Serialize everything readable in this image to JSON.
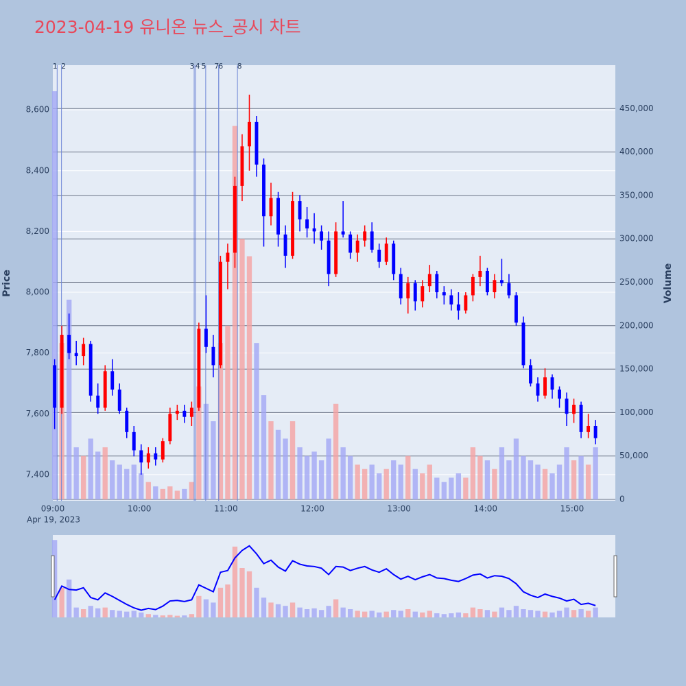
{
  "chart_data": {
    "type": "candlestick",
    "title": "2023-04-19 유니온 뉴스_공시 차트",
    "title_color": "#e8485a",
    "y_label": "Price",
    "y2_label": "Volume",
    "date_label": "Apr 19, 2023",
    "up_color": "#ff0000",
    "down_color": "#0000ff",
    "volume_up_color": "#f5a3a3",
    "volume_down_color": "#a3a8f5",
    "news_color": "#6f86d6",
    "xlim": [
      "09:00",
      "15:30"
    ],
    "xticks": [
      "09:00",
      "10:00",
      "11:00",
      "12:00",
      "13:00",
      "14:00",
      "15:00"
    ],
    "ylim": [
      7314,
      8747
    ],
    "yticks": [
      {
        "value": 7400,
        "label": "7,400"
      },
      {
        "value": 7600,
        "label": "7,600"
      },
      {
        "value": 7800,
        "label": "7,800"
      },
      {
        "value": 8000,
        "label": "8,000"
      },
      {
        "value": 8200,
        "label": "8,200"
      },
      {
        "value": 8400,
        "label": "8,400"
      },
      {
        "value": 8600,
        "label": "8,600"
      }
    ],
    "y2lim": [
      0,
      500000
    ],
    "y2ticks": [
      0,
      {
        "value": 50000,
        "label": "50,000"
      },
      {
        "value": 100000,
        "label": "100,000"
      },
      {
        "value": 150000,
        "label": "150,000"
      },
      {
        "value": 200000,
        "label": "200,000"
      },
      {
        "value": 250000,
        "label": "250,000"
      },
      {
        "value": 300000,
        "label": "300,000"
      },
      {
        "value": 350000,
        "label": "350,000"
      },
      {
        "value": 400000,
        "label": "400,000"
      },
      {
        "value": 450000,
        "label": "450,000"
      }
    ],
    "news": [
      {
        "label": "1",
        "x": "09:03"
      },
      {
        "label": "2",
        "x": "09:06"
      },
      {
        "label": "3",
        "x": "10:38"
      },
      {
        "label": "4",
        "x": "10:39"
      },
      {
        "label": "5",
        "x": "10:46"
      },
      {
        "label": "6",
        "x": "10:55"
      },
      {
        "label": "7",
        "x": "10:55"
      },
      {
        "label": "8",
        "x": "11:08"
      }
    ],
    "x": [
      "09:00",
      "09:05",
      "09:10",
      "09:15",
      "09:20",
      "09:25",
      "09:30",
      "09:35",
      "09:40",
      "09:45",
      "09:50",
      "09:55",
      "10:00",
      "10:05",
      "10:10",
      "10:15",
      "10:20",
      "10:25",
      "10:30",
      "10:35",
      "10:40",
      "10:45",
      "10:50",
      "10:55",
      "11:00",
      "11:05",
      "11:10",
      "11:15",
      "11:20",
      "11:25",
      "11:30",
      "11:35",
      "11:40",
      "11:45",
      "11:50",
      "11:55",
      "12:00",
      "12:05",
      "12:10",
      "12:15",
      "12:20",
      "12:25",
      "12:30",
      "12:35",
      "12:40",
      "12:45",
      "12:50",
      "12:55",
      "13:00",
      "13:05",
      "13:10",
      "13:15",
      "13:20",
      "13:25",
      "13:30",
      "13:35",
      "13:40",
      "13:45",
      "13:50",
      "13:55",
      "14:00",
      "14:05",
      "14:10",
      "14:15",
      "14:20",
      "14:25",
      "14:30",
      "14:35",
      "14:40",
      "14:45",
      "14:50",
      "14:55",
      "15:00",
      "15:05",
      "15:10",
      "15:15"
    ],
    "open": [
      7760,
      7620,
      7860,
      7800,
      7790,
      7830,
      7660,
      7620,
      7740,
      7680,
      7610,
      7540,
      7480,
      7440,
      7470,
      7450,
      7510,
      7600,
      7610,
      7590,
      7620,
      7880,
      7820,
      7760,
      8100,
      8130,
      8350,
      8480,
      8560,
      8420,
      8250,
      8310,
      8190,
      8120,
      8300,
      8240,
      8210,
      8200,
      8170,
      8060,
      8200,
      8190,
      8130,
      8170,
      8200,
      8140,
      8100,
      8160,
      8060,
      7980,
      8030,
      7970,
      8020,
      8060,
      8000,
      7990,
      7960,
      7940,
      7990,
      8050,
      8070,
      8000,
      8040,
      8030,
      7990,
      7900,
      7760,
      7700,
      7660,
      7720,
      7680,
      7650,
      7600,
      7630,
      7540,
      7560
    ],
    "high": [
      7780,
      7890,
      7930,
      7840,
      7850,
      7840,
      7700,
      7760,
      7780,
      7700,
      7620,
      7560,
      7500,
      7490,
      7490,
      7520,
      7620,
      7630,
      7630,
      7640,
      7900,
      7990,
      7860,
      8120,
      8160,
      8380,
      8520,
      8650,
      8580,
      8440,
      8360,
      8330,
      8220,
      8330,
      8320,
      8280,
      8260,
      8220,
      8200,
      8230,
      8300,
      8200,
      8190,
      8220,
      8230,
      8160,
      8180,
      8170,
      8080,
      8050,
      8040,
      8040,
      8090,
      8070,
      8020,
      8010,
      8000,
      8000,
      8060,
      8120,
      8080,
      8060,
      8110,
      8060,
      8000,
      7920,
      7780,
      7720,
      7750,
      7730,
      7690,
      7670,
      7650,
      7640,
      7600,
      7580
    ],
    "low": [
      7550,
      7600,
      7780,
      7760,
      7760,
      7640,
      7600,
      7610,
      7660,
      7600,
      7520,
      7460,
      7400,
      7420,
      7430,
      7440,
      7500,
      7580,
      7570,
      7560,
      7610,
      7800,
      7720,
      7750,
      8010,
      8080,
      8300,
      8400,
      8380,
      8150,
      8220,
      8150,
      8080,
      8110,
      8200,
      8180,
      8160,
      8140,
      8020,
      8050,
      8180,
      8110,
      8100,
      8150,
      8130,
      8080,
      8090,
      8040,
      7960,
      7930,
      7940,
      7950,
      8000,
      7980,
      7960,
      7940,
      7910,
      7930,
      7970,
      8020,
      7990,
      7980,
      8020,
      7980,
      7890,
      7750,
      7690,
      7640,
      7650,
      7650,
      7620,
      7560,
      7570,
      7520,
      7520,
      7500
    ],
    "close": [
      7620,
      7860,
      7800,
      7790,
      7830,
      7660,
      7620,
      7740,
      7680,
      7610,
      7540,
      7480,
      7440,
      7470,
      7450,
      7510,
      7600,
      7610,
      7590,
      7620,
      7880,
      7820,
      7760,
      8100,
      8130,
      8350,
      8480,
      8560,
      8420,
      8250,
      8310,
      8190,
      8120,
      8300,
      8240,
      8210,
      8200,
      8170,
      8060,
      8200,
      8190,
      8130,
      8170,
      8200,
      8140,
      8100,
      8160,
      8060,
      7980,
      8030,
      7970,
      8020,
      8060,
      8000,
      7990,
      7960,
      7940,
      7990,
      8050,
      8070,
      8000,
      8040,
      8030,
      7990,
      7900,
      7760,
      7700,
      7660,
      7720,
      7680,
      7650,
      7600,
      7630,
      7540,
      7560,
      7520
    ],
    "volume": [
      470000,
      180000,
      230000,
      60000,
      50000,
      70000,
      55000,
      60000,
      45000,
      40000,
      35000,
      40000,
      30000,
      20000,
      15000,
      12000,
      15000,
      10000,
      12000,
      20000,
      130000,
      110000,
      90000,
      180000,
      200000,
      430000,
      300000,
      280000,
      180000,
      120000,
      90000,
      80000,
      70000,
      90000,
      60000,
      50000,
      55000,
      45000,
      70000,
      110000,
      60000,
      50000,
      40000,
      35000,
      40000,
      30000,
      35000,
      45000,
      40000,
      50000,
      35000,
      30000,
      40000,
      25000,
      20000,
      25000,
      30000,
      25000,
      60000,
      50000,
      45000,
      35000,
      60000,
      45000,
      70000,
      50000,
      45000,
      40000,
      35000,
      30000,
      40000,
      60000,
      45000,
      50000,
      40000,
      60000
    ]
  }
}
